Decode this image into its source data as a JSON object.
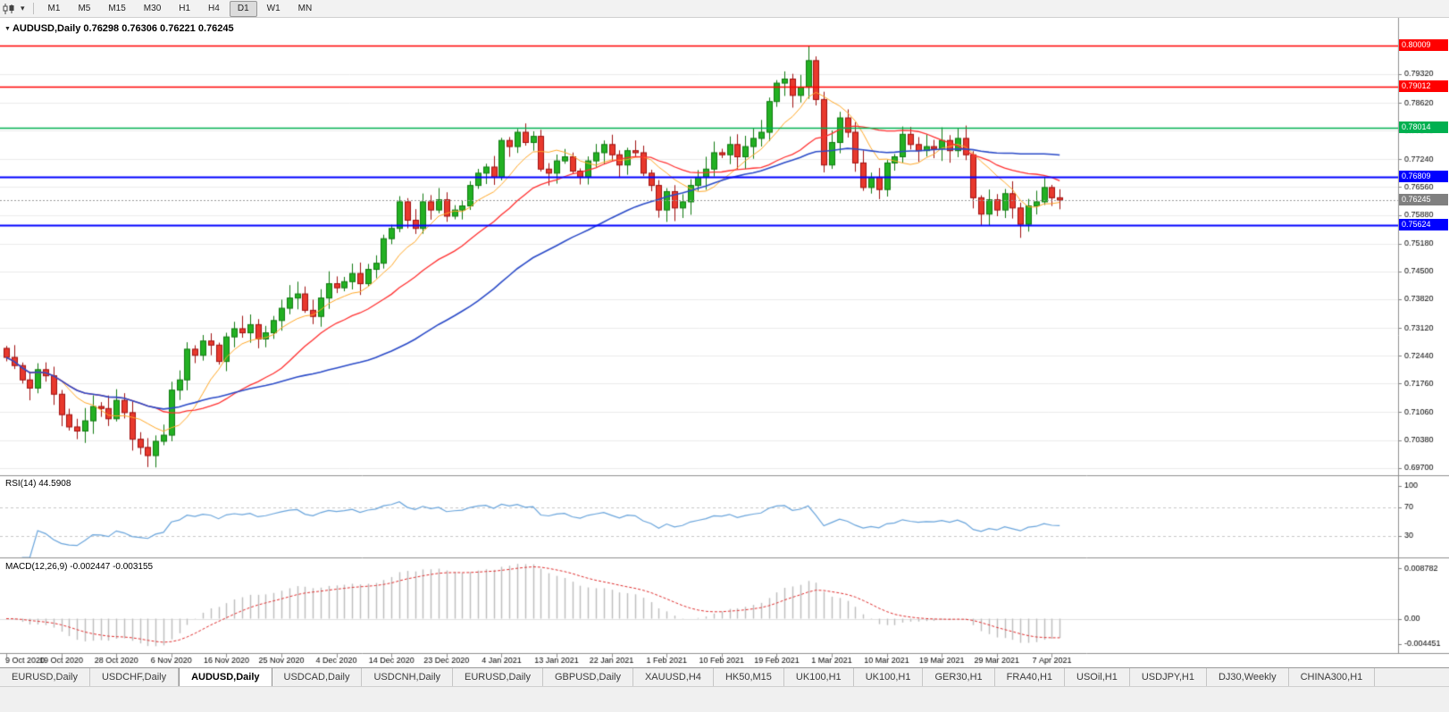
{
  "toolbar": {
    "timeframes": [
      {
        "label": "M1",
        "active": false
      },
      {
        "label": "M5",
        "active": false
      },
      {
        "label": "M15",
        "active": false
      },
      {
        "label": "M30",
        "active": false
      },
      {
        "label": "H1",
        "active": false
      },
      {
        "label": "H4",
        "active": false
      },
      {
        "label": "D1",
        "active": true
      },
      {
        "label": "W1",
        "active": false
      },
      {
        "label": "MN",
        "active": false
      }
    ]
  },
  "chart": {
    "title": "AUDUSD,Daily 0.76298 0.76306 0.76221 0.76245",
    "symbol": "AUDUSD",
    "period": "Daily",
    "open": "0.76298",
    "high": "0.76306",
    "low": "0.76221",
    "close": "0.76245"
  },
  "chart_data": {
    "type": "candlestick",
    "main": {
      "x_labels": [
        "9 Oct 2020",
        "19 Oct 2020",
        "28 Oct 2020",
        "6 Nov 2020",
        "16 Nov 2020",
        "25 Nov 2020",
        "4 Dec 2020",
        "14 Dec 2020",
        "23 Dec 2020",
        "4 Jan 2021",
        "13 Jan 2021",
        "22 Jan 2021",
        "1 Feb 2021",
        "10 Feb 2021",
        "19 Feb 2021",
        "1 Mar 2021",
        "10 Mar 2021",
        "19 Mar 2021",
        "29 Mar 2021",
        "7 Apr 2021"
      ],
      "label_every": 7,
      "first_open": 0.7262,
      "closes": [
        0.724,
        0.722,
        0.7185,
        0.7165,
        0.721,
        0.7195,
        0.715,
        0.71,
        0.707,
        0.706,
        0.7085,
        0.712,
        0.7115,
        0.709,
        0.7135,
        0.7105,
        0.704,
        0.702,
        0.7,
        0.7035,
        0.705,
        0.716,
        0.7185,
        0.726,
        0.7245,
        0.728,
        0.727,
        0.723,
        0.729,
        0.731,
        0.73,
        0.732,
        0.7285,
        0.73,
        0.733,
        0.736,
        0.7385,
        0.7395,
        0.7355,
        0.734,
        0.7385,
        0.742,
        0.741,
        0.7425,
        0.7445,
        0.742,
        0.7455,
        0.747,
        0.753,
        0.7555,
        0.762,
        0.7575,
        0.7555,
        0.762,
        0.76,
        0.7625,
        0.7585,
        0.76,
        0.761,
        0.766,
        0.769,
        0.7705,
        0.768,
        0.777,
        0.7755,
        0.779,
        0.7765,
        0.778,
        0.77,
        0.769,
        0.772,
        0.773,
        0.7695,
        0.768,
        0.772,
        0.774,
        0.776,
        0.7735,
        0.771,
        0.7745,
        0.774,
        0.769,
        0.766,
        0.76,
        0.7645,
        0.7605,
        0.762,
        0.766,
        0.768,
        0.77,
        0.774,
        0.7735,
        0.776,
        0.773,
        0.7755,
        0.7775,
        0.779,
        0.7865,
        0.791,
        0.792,
        0.788,
        0.79,
        0.7965,
        0.787,
        0.771,
        0.7765,
        0.7825,
        0.779,
        0.7715,
        0.7655,
        0.768,
        0.765,
        0.7715,
        0.773,
        0.7785,
        0.776,
        0.7745,
        0.7755,
        0.775,
        0.777,
        0.7745,
        0.7775,
        0.7735,
        0.763,
        0.759,
        0.7625,
        0.76,
        0.764,
        0.7605,
        0.7565,
        0.761,
        0.762,
        0.7655,
        0.763,
        0.76245
      ],
      "wick_overrides": {
        "18": {
          "low": 0.6972
        },
        "102": {
          "high": 0.8001
        },
        "104": {
          "low": 0.7692
        },
        "129": {
          "low": 0.7532
        }
      },
      "y_ticks": [
        "0.79320",
        "0.78620",
        "0.77940",
        "0.77240",
        "0.76560",
        "0.75880",
        "0.75180",
        "0.74500",
        "0.73820",
        "0.73120",
        "0.72440",
        "0.71760",
        "0.71060",
        "0.70380",
        "0.69700"
      ],
      "price_range": {
        "top": 0.8052,
        "bottom": 0.6952
      },
      "levels": [
        {
          "price": 0.80009,
          "label": "0.80009",
          "color": "#FF0000",
          "width": 1.5
        },
        {
          "price": 0.79012,
          "label": "0.79012",
          "color": "#FF0000",
          "width": 1.5
        },
        {
          "price": 0.78014,
          "label": "0.78014",
          "color": "#00B050",
          "width": 1.5
        },
        {
          "price": 0.76809,
          "label": "0.76809",
          "color": "#0000FF",
          "width": 2
        },
        {
          "price": 0.75624,
          "label": "0.75624",
          "color": "#0000FF",
          "width": 2
        }
      ],
      "current_price": {
        "value": 0.76245,
        "label": "0.76245",
        "color": "#808080"
      },
      "moving_averages": [
        {
          "name": "fast-ma",
          "period": 8,
          "color": "#FFA928",
          "width": 1
        },
        {
          "name": "mid-ma",
          "period": 20,
          "color": "#FF3030",
          "width": 1.3
        },
        {
          "name": "slow-ma",
          "period": 45,
          "color": "#2B4BC8",
          "width": 1.6
        }
      ]
    },
    "rsi": {
      "label": "RSI(14) 44.5908",
      "period": 14,
      "value": "44.5908",
      "overbought": 70,
      "oversold": 30,
      "axis_labels": [
        "100",
        "70",
        "30"
      ],
      "axis_values": [
        100,
        70,
        30
      ],
      "color": "#6AA5DC"
    },
    "macd": {
      "label": "MACD(12,26,9) -0.002447 -0.003155",
      "fast": 12,
      "slow": 26,
      "signal": 9,
      "value": "-0.002447",
      "signal_value": "-0.003155",
      "axis_labels": [
        "0.008782",
        "0.00",
        "-0.004451"
      ],
      "axis_values": [
        0.008782,
        0,
        -0.004451
      ],
      "histogram_color": "#BDBDBD",
      "signal_color": "#E03030"
    }
  },
  "tabs": {
    "active_index": 2,
    "items": [
      "EURUSD,Daily",
      "USDCHF,Daily",
      "AUDUSD,Daily",
      "USDCAD,Daily",
      "USDCNH,Daily",
      "EURUSD,Daily",
      "GBPUSD,Daily",
      "XAUUSD,H4",
      "HK50,M15",
      "UK100,H1",
      "UK100,H1",
      "GER30,H1",
      "FRA40,H1",
      "USOil,H1",
      "USDJPY,H1",
      "DJ30,Weekly",
      "CHINA300,H1"
    ]
  }
}
